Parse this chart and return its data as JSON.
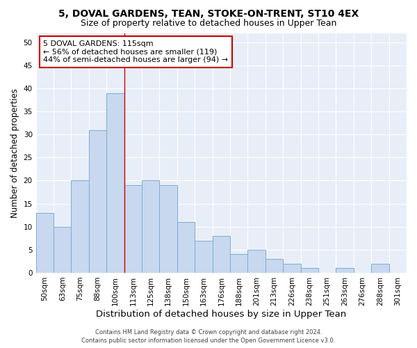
{
  "title1": "5, DOVAL GARDENS, TEAN, STOKE-ON-TRENT, ST10 4EX",
  "title2": "Size of property relative to detached houses in Upper Tean",
  "xlabel": "Distribution of detached houses by size in Upper Tean",
  "ylabel": "Number of detached properties",
  "categories": [
    "50sqm",
    "63sqm",
    "75sqm",
    "88sqm",
    "100sqm",
    "113sqm",
    "125sqm",
    "138sqm",
    "150sqm",
    "163sqm",
    "176sqm",
    "188sqm",
    "201sqm",
    "213sqm",
    "226sqm",
    "238sqm",
    "251sqm",
    "263sqm",
    "276sqm",
    "288sqm",
    "301sqm"
  ],
  "values": [
    13,
    10,
    20,
    31,
    39,
    19,
    20,
    19,
    11,
    7,
    8,
    4,
    5,
    3,
    2,
    1,
    0,
    1,
    0,
    2,
    0
  ],
  "bar_color": "#c8d8ee",
  "bar_edge_color": "#7aadd4",
  "background_color": "#e8eef8",
  "vline_color": "#cc0000",
  "vline_x": 4.5,
  "annotation_line1": "5 DOVAL GARDENS: 115sqm",
  "annotation_line2": "← 56% of detached houses are smaller (119)",
  "annotation_line3": "44% of semi-detached houses are larger (94) →",
  "footnote1": "Contains HM Land Registry data © Crown copyright and database right 2024.",
  "footnote2": "Contains public sector information licensed under the Open Government Licence v3.0.",
  "ylim": [
    0,
    52
  ],
  "yticks": [
    0,
    5,
    10,
    15,
    20,
    25,
    30,
    35,
    40,
    45,
    50
  ],
  "title1_fontsize": 10,
  "title2_fontsize": 9,
  "xlabel_fontsize": 9.5,
  "ylabel_fontsize": 8.5,
  "tick_fontsize": 7.5,
  "annot_fontsize": 8,
  "footnote_fontsize": 6
}
